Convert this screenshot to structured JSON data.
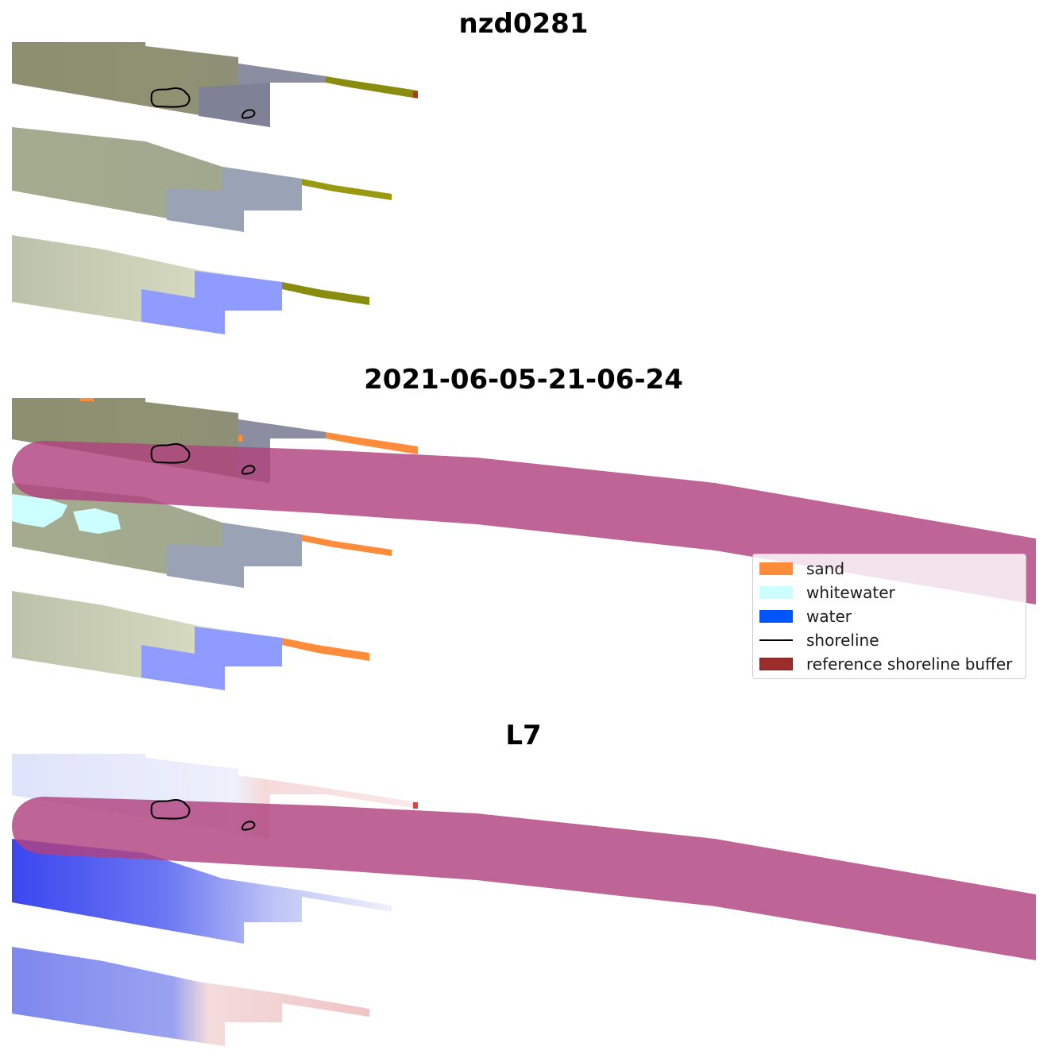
{
  "panels": [
    {
      "title": "nzd0281"
    },
    {
      "title": "2021-06-05-21-06-24"
    },
    {
      "title": "L7"
    }
  ],
  "legend": {
    "items": [
      {
        "label": "sand",
        "color": "#ff8c3a",
        "kind": "patch"
      },
      {
        "label": "whitewater",
        "color": "#ccffff",
        "kind": "patch"
      },
      {
        "label": "water",
        "color": "#0055ff",
        "kind": "patch"
      },
      {
        "label": "shoreline",
        "color": "#000000",
        "kind": "line"
      },
      {
        "label": "reference shoreline buffer",
        "color": "#9b2d2d",
        "kind": "patch"
      }
    ]
  },
  "colors": {
    "rgb_land": "#9aa07a",
    "rgb_water": "#8a93c8",
    "rgb_shallow": "#8f95a8",
    "rgb_bright_water": "#8f9bff",
    "olive_strip": "#8a8c10",
    "sand": "#ff8c3a",
    "whitewater": "#ccffff",
    "buffer": "#b0427f",
    "ndwi_blue": "#6f7cf2",
    "ndwi_white": "#e8ecff",
    "ndwi_red": "#f3c2c2"
  }
}
